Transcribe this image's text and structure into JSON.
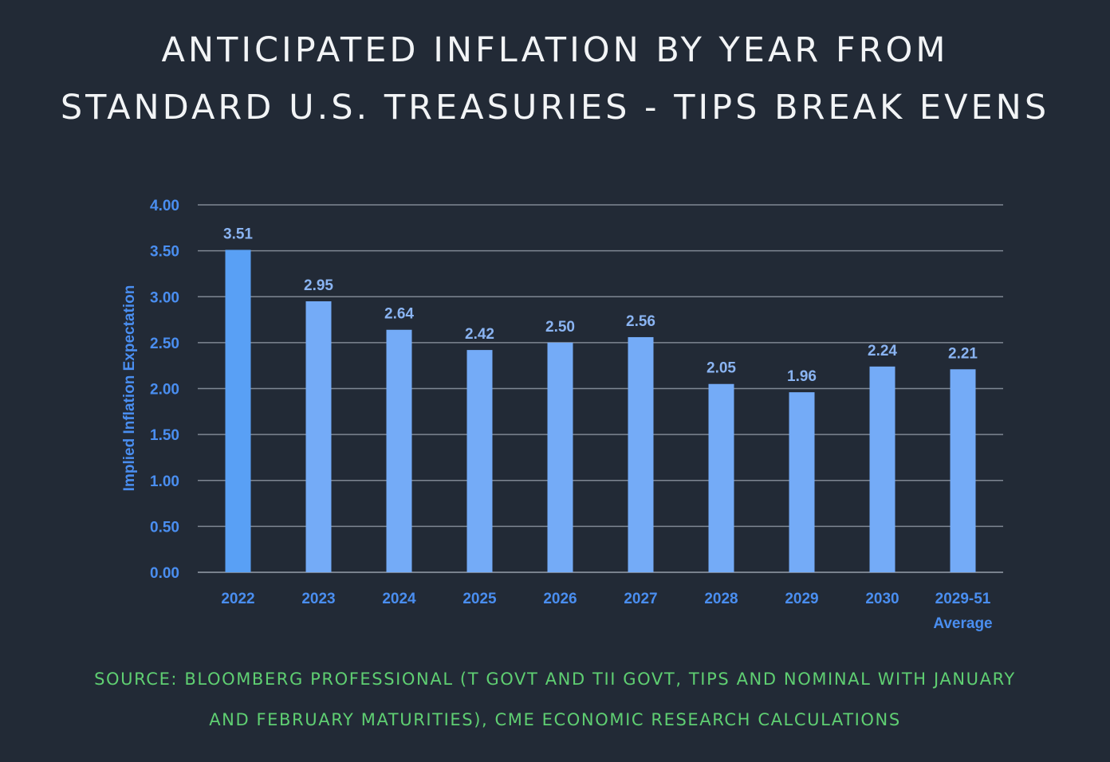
{
  "title_lines": [
    "ANTICIPATED INFLATION BY YEAR FROM",
    "STANDARD U.S. TREASURIES - TIPS BREAK EVENS"
  ],
  "source_lines": [
    "SOURCE: BLOOMBERG PROFESSIONAL (T GOVT AND TII GOVT, TIPS AND NOMINAL WITH JANUARY",
    "AND FEBRUARY MATURITIES), CME ECONOMIC RESEARCH CALCULATIONS"
  ],
  "colors": {
    "background": "#222a36",
    "bar": "#74abf7",
    "bar_first": "#59a0f5",
    "axis_text": "#4a8ef0",
    "data_label": "#8ab4f2",
    "grid": "#7f8793",
    "source_text": "#5fcf72"
  },
  "chart_data": {
    "type": "bar",
    "title": "ANTICIPATED INFLATION BY YEAR FROM STANDARD U.S. TREASURIES - TIPS BREAK EVENS",
    "xlabel": "",
    "ylabel": "Implied Inflation Expectation",
    "ylim": [
      0,
      4
    ],
    "yticks": [
      "0.00",
      "0.50",
      "1.00",
      "1.50",
      "2.00",
      "2.50",
      "3.00",
      "3.50",
      "4.00"
    ],
    "categories": [
      "2022",
      "2023",
      "2024",
      "2025",
      "2026",
      "2027",
      "2028",
      "2029",
      "2030",
      "2029-51 Average"
    ],
    "category_lines": [
      [
        "2022"
      ],
      [
        "2023"
      ],
      [
        "2024"
      ],
      [
        "2025"
      ],
      [
        "2026"
      ],
      [
        "2027"
      ],
      [
        "2028"
      ],
      [
        "2029"
      ],
      [
        "2030"
      ],
      [
        "2029-51",
        "Average"
      ]
    ],
    "values": [
      3.51,
      2.95,
      2.64,
      2.42,
      2.5,
      2.56,
      2.05,
      1.96,
      2.24,
      2.21
    ],
    "value_labels": [
      "3.51",
      "2.95",
      "2.64",
      "2.42",
      "2.50",
      "2.56",
      "2.05",
      "1.96",
      "2.24",
      "2.21"
    ],
    "grid": true,
    "legend": "none"
  }
}
